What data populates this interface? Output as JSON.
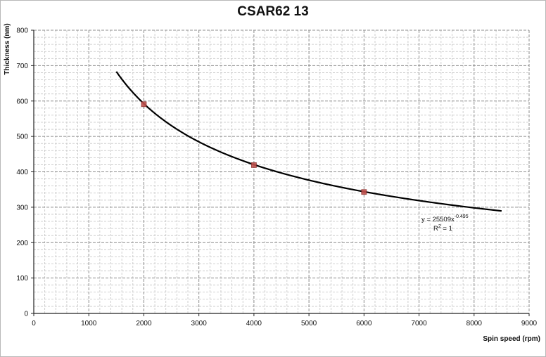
{
  "chart_data": {
    "type": "scatter",
    "title": "CSAR62 13",
    "xlabel": "Spin speed (rpm)",
    "ylabel": "Thickness (nm)",
    "xlim": [
      0,
      9000
    ],
    "ylim": [
      0,
      800
    ],
    "x_ticks": [
      0,
      1000,
      2000,
      3000,
      4000,
      5000,
      6000,
      7000,
      8000,
      9000
    ],
    "y_ticks": [
      0,
      100,
      200,
      300,
      400,
      500,
      600,
      700,
      800
    ],
    "grid": true,
    "points": [
      {
        "x": 2000,
        "y": 591
      },
      {
        "x": 4000,
        "y": 419
      },
      {
        "x": 6000,
        "y": 343
      }
    ],
    "trendline": {
      "type": "power",
      "coefficient": 25509,
      "exponent": -0.495,
      "x_range": [
        1500,
        8500
      ],
      "equation_text": "y = 25509x",
      "exponent_text": "-0.495",
      "r2_text": "R",
      "r2_sup": "2",
      "r2_value_text": " = 1"
    },
    "colors": {
      "marker": "#c0504d",
      "marker_border": "#8b2e2b",
      "line": "#000000",
      "grid_major": "#8c8c8c",
      "grid_minor": "#c4c4c4"
    }
  }
}
